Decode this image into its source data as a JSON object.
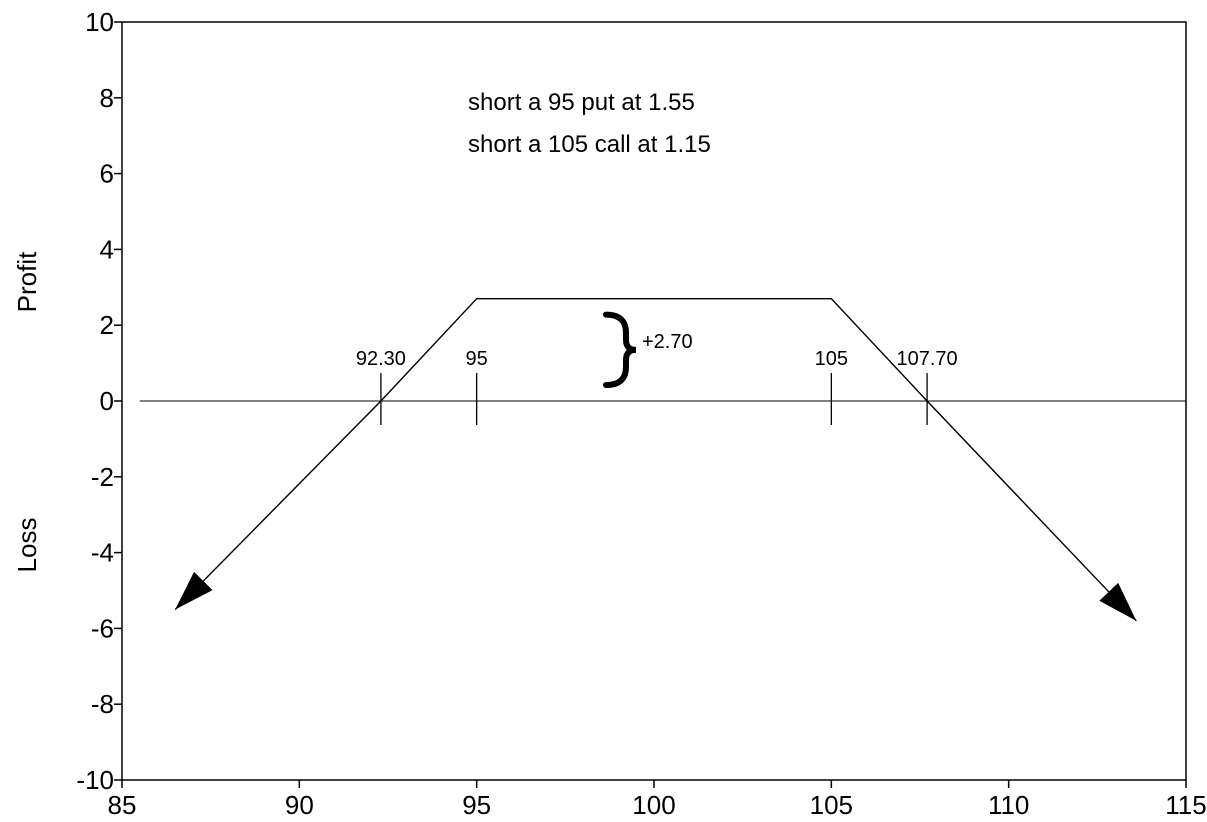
{
  "chart_data": {
    "type": "line",
    "title": "",
    "xlabel": "",
    "ylabels": {
      "top": "Profit",
      "bottom": "Loss"
    },
    "xlim": [
      85,
      115
    ],
    "ylim": [
      -10,
      10
    ],
    "x_ticks": [
      85,
      90,
      95,
      100,
      105,
      110,
      115
    ],
    "y_ticks": [
      10,
      8,
      6,
      4,
      2,
      0,
      -2,
      -4,
      -6,
      -8,
      -10
    ],
    "grid": false,
    "legend": "none",
    "series": [
      {
        "name": "",
        "x": [
          86.5,
          92.3,
          95,
          105,
          107.7,
          113.6
        ],
        "y": [
          -5.5,
          0,
          2.7,
          2.7,
          0,
          -5.8
        ]
      }
    ],
    "annotations": {
      "notes": [
        "short a 95 put at 1.55",
        "short a 105 call at 1.15"
      ],
      "markers": [
        {
          "x": 92.3,
          "label": "92.30"
        },
        {
          "x": 95,
          "label": "95"
        },
        {
          "x": 105,
          "label": "105"
        },
        {
          "x": 107.7,
          "label": "107.70"
        }
      ],
      "brace_label": "+2.70",
      "brace_range": [
        0,
        2.7
      ]
    }
  }
}
